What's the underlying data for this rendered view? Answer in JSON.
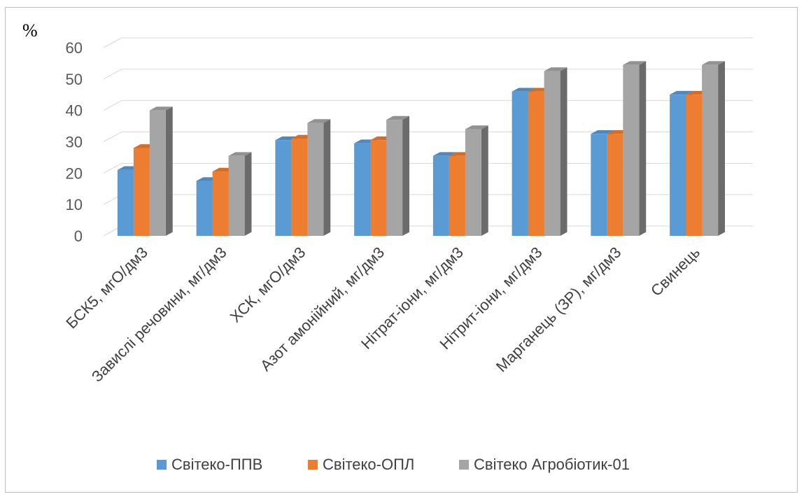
{
  "chart_data": {
    "type": "bar",
    "style": "3d-clustered-column",
    "ylabel": "%",
    "ylim": [
      0,
      60
    ],
    "yticks": [
      0,
      10,
      20,
      30,
      40,
      50,
      60
    ],
    "grid": true,
    "legend_position": "bottom",
    "categories": [
      "БСК5, мгО/дм3",
      "Завислі речовини, мг/дм3",
      "ХСК, мгО/дм3",
      "Азот амонійний, мг/дм3",
      "Нітрат-іони, мг/дм3",
      "Нітрит-іони, мг/дм3",
      "Марганець (ЗР), мг/дм3",
      "Свинець"
    ],
    "series": [
      {
        "name": "Світеко-ППВ",
        "color": "#5b9bd5",
        "values": [
          21,
          17.5,
          30.5,
          29.5,
          25.5,
          46,
          32.5,
          45
        ]
      },
      {
        "name": "Світеко-ОПЛ",
        "color": "#ed7d31",
        "values": [
          28,
          20.5,
          31,
          30.5,
          25.5,
          46,
          32.5,
          45
        ]
      },
      {
        "name": "Світеко Агробіотик-01",
        "color": "#a5a5a5",
        "values": [
          40,
          25.5,
          36,
          37,
          34,
          52.5,
          54.5,
          54.5
        ]
      }
    ]
  }
}
